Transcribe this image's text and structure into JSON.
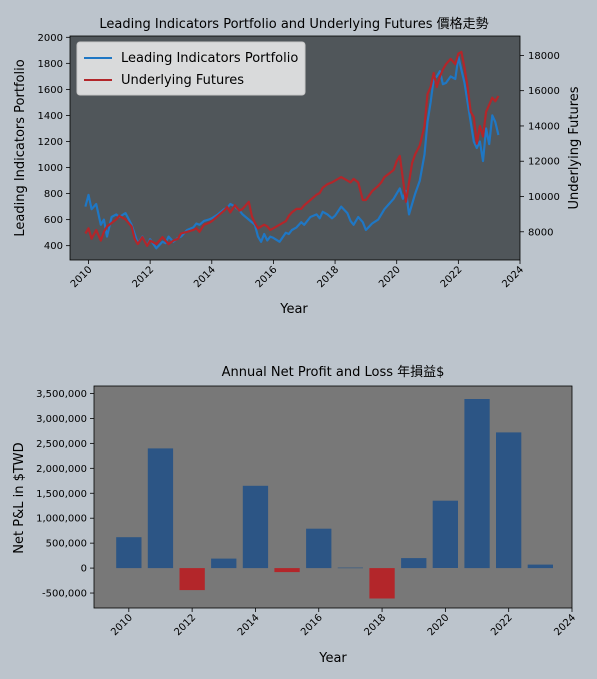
{
  "chart_data": [
    {
      "type": "line",
      "title": "Leading Indicators Portfolio and Underlying Futures 價格走勢",
      "xlabel": "Year",
      "ylabel": "Leading Indicators Portfolio",
      "y2label": "Underlying Futures",
      "xlim": [
        2009.4,
        2024.0
      ],
      "ylim": [
        290,
        2010
      ],
      "y2lim": [
        6400,
        19100
      ],
      "xticks": [
        "2010",
        "2012",
        "2014",
        "2016",
        "2018",
        "2020",
        "2022",
        "2024"
      ],
      "yticks": [
        "400",
        "600",
        "800",
        "1000",
        "1200",
        "1400",
        "1600",
        "1800",
        "2000"
      ],
      "y2ticks": [
        "8000",
        "10000",
        "12000",
        "14000",
        "16000",
        "18000"
      ],
      "legend": {
        "placement": "top-left"
      },
      "grid": false,
      "colors": {
        "plot_bg": "#50565a",
        "portfolio": "#1f77c4",
        "futures": "#b3262a"
      },
      "series": [
        {
          "name": "Leading Indicators Portfolio",
          "axis": "left",
          "x": [
            2009.9,
            2010.0,
            2010.1,
            2010.25,
            2010.4,
            2010.5,
            2010.6,
            2010.75,
            2010.9,
            2011.0,
            2011.2,
            2011.4,
            2011.5,
            2011.6,
            2011.75,
            2011.9,
            2012.0,
            2012.2,
            2012.4,
            2012.5,
            2012.6,
            2012.75,
            2012.9,
            2013.0,
            2013.2,
            2013.4,
            2013.5,
            2013.6,
            2013.75,
            2013.9,
            2014.0,
            2014.2,
            2014.4,
            2014.5,
            2014.6,
            2014.75,
            2014.9,
            2015.0,
            2015.1,
            2015.2,
            2015.3,
            2015.4,
            2015.5,
            2015.6,
            2015.7,
            2015.8,
            2015.9,
            2016.0,
            2016.2,
            2016.4,
            2016.5,
            2016.6,
            2016.75,
            2016.9,
            2017.0,
            2017.2,
            2017.4,
            2017.5,
            2017.6,
            2017.75,
            2017.9,
            2018.0,
            2018.2,
            2018.4,
            2018.5,
            2018.6,
            2018.75,
            2018.9,
            2019.0,
            2019.2,
            2019.4,
            2019.5,
            2019.6,
            2019.75,
            2019.9,
            2020.0,
            2020.1,
            2020.2,
            2020.3,
            2020.4,
            2020.5,
            2020.6,
            2020.75,
            2020.9,
            2021.0,
            2021.1,
            2021.2,
            2021.3,
            2021.4,
            2021.5,
            2021.6,
            2021.75,
            2021.9,
            2022.0,
            2022.1,
            2022.2,
            2022.3,
            2022.4,
            2022.5,
            2022.6,
            2022.7,
            2022.8,
            2022.9,
            2023.0,
            2023.1,
            2023.2,
            2023.3
          ],
          "values": [
            700,
            790,
            680,
            720,
            560,
            600,
            470,
            620,
            640,
            620,
            650,
            560,
            490,
            420,
            470,
            400,
            450,
            380,
            430,
            420,
            470,
            430,
            460,
            470,
            520,
            540,
            570,
            560,
            590,
            600,
            610,
            640,
            680,
            690,
            720,
            700,
            670,
            640,
            620,
            600,
            580,
            560,
            470,
            430,
            490,
            440,
            470,
            460,
            430,
            500,
            490,
            520,
            540,
            580,
            560,
            620,
            640,
            610,
            660,
            640,
            610,
            630,
            700,
            650,
            590,
            560,
            620,
            580,
            520,
            570,
            600,
            640,
            680,
            720,
            760,
            800,
            840,
            760,
            820,
            640,
            720,
            800,
            900,
            1100,
            1350,
            1500,
            1680,
            1700,
            1740,
            1640,
            1650,
            1700,
            1680,
            1850,
            1750,
            1650,
            1500,
            1350,
            1200,
            1150,
            1200,
            1050,
            1300,
            1180,
            1400,
            1350,
            1250
          ]
        },
        {
          "name": "Underlying Futures",
          "axis": "right",
          "x": [
            2009.9,
            2010.0,
            2010.1,
            2010.25,
            2010.4,
            2010.5,
            2010.6,
            2010.75,
            2010.9,
            2011.0,
            2011.2,
            2011.4,
            2011.5,
            2011.6,
            2011.75,
            2011.9,
            2012.0,
            2012.2,
            2012.4,
            2012.5,
            2012.6,
            2012.75,
            2012.9,
            2013.0,
            2013.2,
            2013.4,
            2013.5,
            2013.6,
            2013.75,
            2013.9,
            2014.0,
            2014.2,
            2014.4,
            2014.5,
            2014.6,
            2014.75,
            2014.9,
            2015.0,
            2015.1,
            2015.2,
            2015.3,
            2015.4,
            2015.5,
            2015.6,
            2015.7,
            2015.8,
            2015.9,
            2016.0,
            2016.2,
            2016.4,
            2016.5,
            2016.6,
            2016.75,
            2016.9,
            2017.0,
            2017.2,
            2017.4,
            2017.5,
            2017.6,
            2017.75,
            2017.9,
            2018.0,
            2018.2,
            2018.4,
            2018.5,
            2018.6,
            2018.75,
            2018.9,
            2019.0,
            2019.2,
            2019.4,
            2019.5,
            2019.6,
            2019.75,
            2019.9,
            2020.0,
            2020.1,
            2020.2,
            2020.3,
            2020.4,
            2020.5,
            2020.6,
            2020.75,
            2020.9,
            2021.0,
            2021.1,
            2021.2,
            2021.3,
            2021.4,
            2021.5,
            2021.6,
            2021.75,
            2021.9,
            2022.0,
            2022.1,
            2022.2,
            2022.3,
            2022.4,
            2022.5,
            2022.6,
            2022.7,
            2022.8,
            2022.9,
            2023.0,
            2023.1,
            2023.2,
            2023.3
          ],
          "values": [
            7900,
            8200,
            7600,
            8100,
            7500,
            8000,
            8300,
            8500,
            8700,
            8900,
            8700,
            8300,
            7600,
            7300,
            7700,
            7200,
            7500,
            7300,
            7700,
            7500,
            7300,
            7500,
            7600,
            7900,
            8000,
            8100,
            8200,
            8000,
            8400,
            8500,
            8600,
            8900,
            9200,
            9400,
            9100,
            9500,
            9200,
            9300,
            9500,
            9700,
            8900,
            8500,
            8200,
            8300,
            8400,
            8300,
            8100,
            8200,
            8400,
            8600,
            8900,
            9100,
            9300,
            9300,
            9500,
            9800,
            10100,
            10200,
            10500,
            10700,
            10800,
            10900,
            11100,
            10900,
            10800,
            11000,
            10800,
            9800,
            9800,
            10300,
            10600,
            10800,
            11100,
            11300,
            11500,
            12000,
            12300,
            11000,
            9700,
            10800,
            11900,
            12400,
            12900,
            14000,
            15800,
            16200,
            17000,
            16200,
            16800,
            17200,
            17500,
            17800,
            17500,
            18100,
            18200,
            17300,
            16200,
            14800,
            14500,
            13000,
            14000,
            13400,
            14800,
            15200,
            15600,
            15400,
            15700
          ]
        }
      ]
    },
    {
      "type": "bar",
      "title": "Annual Net Profit and Loss 年損益$",
      "xlabel": "Year",
      "ylabel": "Net P&L in $TWD",
      "xlim": [
        2008.9,
        2024.0
      ],
      "ylim": [
        -800000,
        3650000
      ],
      "xticks": [
        "2010",
        "2012",
        "2014",
        "2016",
        "2018",
        "2020",
        "2022",
        "2024"
      ],
      "yticks": [
        "-500,000",
        "0",
        "500,000",
        "1,000,000",
        "1,500,000",
        "2,000,000",
        "2,500,000",
        "3,000,000",
        "3,500,000"
      ],
      "grid": false,
      "colors": {
        "plot_bg": "#787878",
        "positive": "#2c5585",
        "negative": "#b3262a"
      },
      "x": [
        2010,
        2011,
        2012,
        2013,
        2014,
        2015,
        2016,
        2017,
        2018,
        2019,
        2020,
        2021,
        2022,
        2023
      ],
      "values": [
        620000,
        2400000,
        -440000,
        190000,
        1650000,
        -80000,
        790000,
        10000,
        -610000,
        200000,
        1350000,
        3390000,
        2720000,
        70000
      ]
    }
  ]
}
